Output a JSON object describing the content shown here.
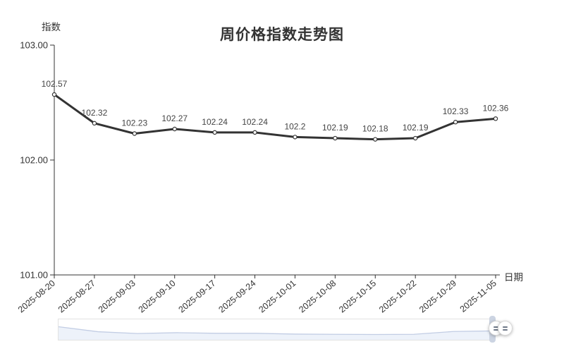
{
  "chart_data": {
    "type": "line",
    "title": "周价格指数走势图",
    "ylabel": "指数",
    "xlabel": "日期",
    "categories": [
      "2025-08-20",
      "2025-08-27",
      "2025-09-03",
      "2025-09-10",
      "2025-09-17",
      "2025-09-24",
      "2025-10-01",
      "2025-10-08",
      "2025-10-15",
      "2025-10-22",
      "2025-10-29",
      "2025-11-05"
    ],
    "values": [
      102.57,
      102.32,
      102.23,
      102.27,
      102.24,
      102.24,
      102.2,
      102.19,
      102.18,
      102.19,
      102.33,
      102.36
    ],
    "point_labels": [
      "102.57",
      "102.32",
      "102.23",
      "102.27",
      "102.24",
      "102.24",
      "102.2",
      "102.19",
      "102.18",
      "102.19",
      "102.33",
      "102.36"
    ],
    "ylim": [
      101,
      103
    ],
    "ytick_values": [
      103,
      102,
      101
    ],
    "ytick_labels": [
      "103.00",
      "102.00",
      "101.00"
    ],
    "x_label_rotate": 40,
    "grid": false,
    "legend": false,
    "line_color": "#333333",
    "marker_fill": "#ffffff",
    "label_color": "#444444",
    "axis_color": "#333333",
    "tick_label_color": "#333333",
    "title_color": "#333333",
    "datazoom": {
      "track_border": "#e2e2e2",
      "track_fill": "#ffffff",
      "preview_line_color": "#c2cde4",
      "preview_fill_color": "#edf2fa",
      "handle_bar_color": "#ccd4e2",
      "handle_grip_color": "#6e7888"
    }
  }
}
